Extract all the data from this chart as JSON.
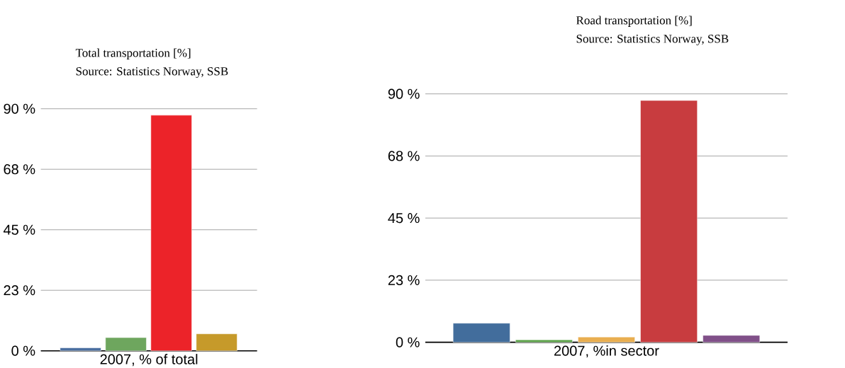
{
  "chart_data": [
    {
      "type": "bar",
      "title": "Total transportation [%]",
      "annotations": [
        "Source: Statistics Norway, SSB"
      ],
      "xlabel": "2007, % of total",
      "categories": [
        null,
        null,
        null,
        null
      ],
      "values": [
        1.1,
        4.9,
        87.6,
        6.3
      ],
      "colors": [
        "#4a6fa0",
        "#6ea65e",
        "#ec2329",
        "#c69a2a"
      ],
      "ylim": [
        0,
        90
      ],
      "yticks": [
        {
          "value": 0,
          "label": "0 %"
        },
        {
          "value": 22.5,
          "label": "23 %"
        },
        {
          "value": 45,
          "label": "45 %"
        },
        {
          "value": 67.5,
          "label": "68 %"
        },
        {
          "value": 90,
          "label": "90 %"
        }
      ],
      "grid": "y"
    },
    {
      "type": "bar",
      "title": "Road transportation [%]",
      "annotations": [
        "Source: Statistics Norway, SSB"
      ],
      "xlabel": "2007, %in sector",
      "categories": [
        null,
        null,
        null,
        null,
        null
      ],
      "values": [
        6.9,
        0.9,
        1.9,
        87.6,
        2.5
      ],
      "colors": [
        "#426d9c",
        "#5aa047",
        "#e9ae50",
        "#c83c3f",
        "#815089"
      ],
      "ylim": [
        0,
        90
      ],
      "yticks": [
        {
          "value": 0,
          "label": "0 %"
        },
        {
          "value": 22.5,
          "label": "23 %"
        },
        {
          "value": 45,
          "label": "45 %"
        },
        {
          "value": 67.5,
          "label": "68 %"
        },
        {
          "value": 90,
          "label": "90 %"
        }
      ],
      "grid": "y"
    }
  ]
}
